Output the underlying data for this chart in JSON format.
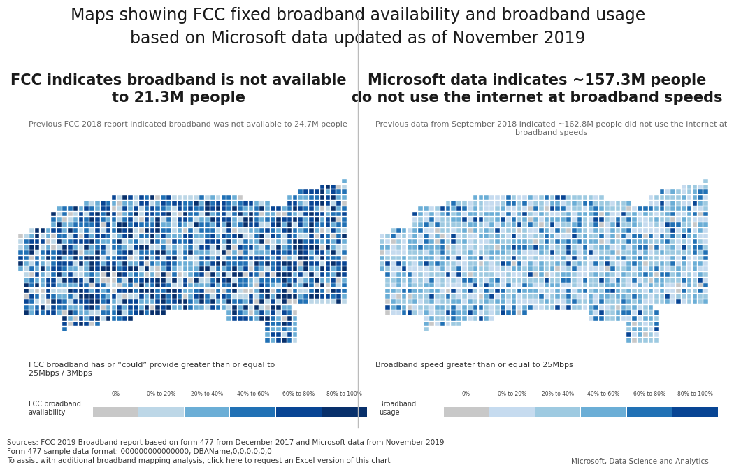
{
  "title_line1": "Maps showing FCC fixed broadband availability and broadband usage",
  "title_line2": "based on Microsoft data updated as of November 2019",
  "title_fontsize": 17,
  "background_color": "#ffffff",
  "divider_color": "#bbbbbb",
  "left_panel": {
    "heading": "FCC indicates broadband is not available\nto 21.3M people",
    "heading_fontsize": 15,
    "subheading": "Previous FCC 2018 report indicated broadband was not available to 24.7M people",
    "subheading_fontsize": 8,
    "caption": "FCC broadband has or “could” provide greater than or equal to\n25Mbps / 3Mbps",
    "legend_label": "FCC broadband\navailability"
  },
  "right_panel": {
    "heading": "Microsoft data indicates ~157.3M people\ndo not use the internet at broadband speeds",
    "heading_fontsize": 15,
    "subheading": "Previous data from September 2018 indicated ~162.8M people did not use the internet at\nbroadband speeds",
    "subheading_fontsize": 8,
    "caption": "Broadband speed greater than or equal to 25Mbps",
    "legend_label": "Broadband\nusage"
  },
  "left_legend_colors": [
    "#c8c8c8",
    "#bdd7e7",
    "#6baed6",
    "#2171b5",
    "#084594",
    "#08306b"
  ],
  "right_legend_colors": [
    "#c8c8c8",
    "#c6dbef",
    "#9ecae1",
    "#6baed6",
    "#2171b5",
    "#084594"
  ],
  "legend_labels": [
    "0%",
    "0% to 20%",
    "20% to 40%",
    "40% to 60%",
    "60% to 80%",
    "80% to 100%"
  ],
  "footer_left": "Sources: FCC 2019 Broadband report based on form 477 from December 2017 and Microsoft data from November 2019\nForm 477 sample data format: 000000000000000, DBAName,0,0,0,0,0,0\nTo assist with additional broadband mapping analysis, click here to request an Excel version of this chart",
  "footer_right": "Microsoft, Data Science and Analytics",
  "footer_fontsize": 7.5
}
